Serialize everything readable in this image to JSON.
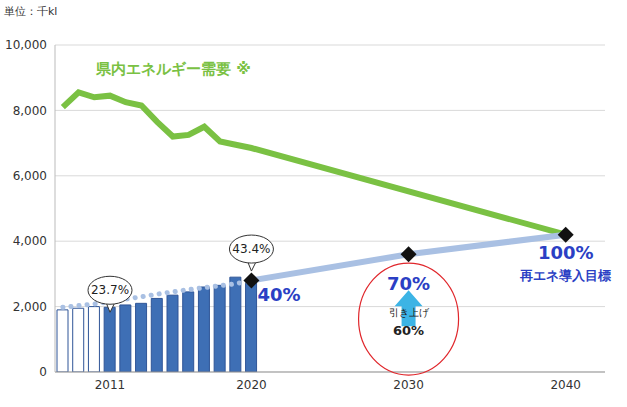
{
  "chart_data": {
    "type": "bar",
    "ylabel": "単位：千kl",
    "categories": [
      null,
      null,
      null,
      2011,
      null,
      null,
      null,
      null,
      null,
      null,
      null,
      null,
      2020,
      null,
      null,
      null,
      null,
      null,
      null,
      null,
      null,
      null,
      2030,
      null,
      null,
      null,
      null,
      null,
      null,
      null,
      null,
      null,
      2040,
      null,
      null
    ],
    "series": [
      {
        "type": "bar",
        "colors": [
          "#ffffff",
          "#ffffff",
          "#ffffff",
          "#3e6fb5",
          "#3e6fb5",
          "#3e6fb5",
          "#3e6fb5",
          "#3e6fb5",
          "#3e6fb5",
          "#3e6fb5",
          "#3e6fb5",
          "#3e6fb5",
          "#3e6fb5",
          "#3e6fb5",
          "#3e6fb5",
          "#3e6fb5",
          "#3e6fb5",
          "#3e6fb5",
          "#3e6fb5",
          "#3e6fb5",
          "#3e6fb5",
          "#3e6fb5",
          "#3e6fb5",
          "#3e6fb5",
          "#3e6fb5",
          "#3e6fb5",
          "#3e6fb5",
          "#3e6fb5",
          "#3e6fb5",
          "#3e6fb5",
          "#3e6fb5",
          "#3e6fb5",
          "#3e6fb5",
          "#3e6fb5",
          "#3e6fb5"
        ],
        "values": [
          1900,
          1950,
          2000,
          1980,
          2050,
          2100,
          2250,
          2350,
          2450,
          2600,
          2650,
          2900,
          2800,
          null,
          null,
          null,
          null,
          null,
          null,
          null,
          null,
          null,
          null,
          null,
          null,
          null,
          null,
          null,
          null,
          null,
          null,
          null,
          null,
          null,
          null
        ]
      },
      {
        "name": "県内エネルギー需要 ※",
        "type": "line",
        "color": "#7ac143",
        "values": [
          8100,
          8550,
          8400,
          8450,
          8250,
          8150,
          7650,
          7200,
          7250,
          7500,
          7050,
          6950,
          6850,
          null,
          null,
          null,
          null,
          null,
          null,
          null,
          null,
          null,
          null,
          null,
          null,
          null,
          null,
          null,
          null,
          null,
          null,
          null,
          4200,
          null,
          null
        ]
      },
      {
        "type": "line",
        "color": "#a9c0e3",
        "line_style": "dotted",
        "values": [
          1980,
          2030,
          2080,
          2150,
          2230,
          2300,
          2380,
          2450,
          2520,
          2580,
          2640,
          2700,
          2800,
          null,
          null,
          null,
          null,
          null,
          null,
          null,
          null,
          null,
          null,
          null,
          null,
          null,
          null,
          null,
          null,
          null,
          null,
          null,
          null,
          null,
          null
        ]
      },
      {
        "type": "line",
        "color": "#a9c0e3",
        "marker": "diamond",
        "values": [
          null,
          null,
          null,
          null,
          null,
          null,
          null,
          null,
          null,
          null,
          null,
          null,
          2800,
          null,
          null,
          null,
          null,
          null,
          null,
          null,
          null,
          null,
          3600,
          null,
          null,
          null,
          null,
          null,
          null,
          null,
          null,
          null,
          4200,
          null,
          null
        ]
      }
    ],
    "ylim": [
      0,
      10000
    ],
    "yticks": [
      0,
      {
        "value": 2000,
        "label": "2,000"
      },
      {
        "value": 4000,
        "label": "4,000"
      },
      {
        "value": 6000,
        "label": "6,000"
      },
      {
        "value": 8000,
        "label": "8,000"
      },
      {
        "value": 10000,
        "label": "10,000"
      }
    ],
    "grid": true,
    "annotations": [
      {
        "text": "23.7%",
        "x": 2011,
        "y": 2500
      },
      {
        "text": "43.4%",
        "x": 2020,
        "y": 3760
      },
      {
        "text": "40%",
        "x": 2020,
        "y": 2400
      },
      {
        "text": "70%",
        "x": 2030,
        "y": 2720
      },
      {
        "text": "引き上げ",
        "x": 2030,
        "y": 1830
      },
      {
        "text": "60%",
        "x": 2030,
        "y": 1280
      },
      {
        "text": "100%",
        "x": 2040,
        "y": 3670
      },
      {
        "text": "再エネ導入目標",
        "x": 2040,
        "y": 2970
      }
    ]
  }
}
